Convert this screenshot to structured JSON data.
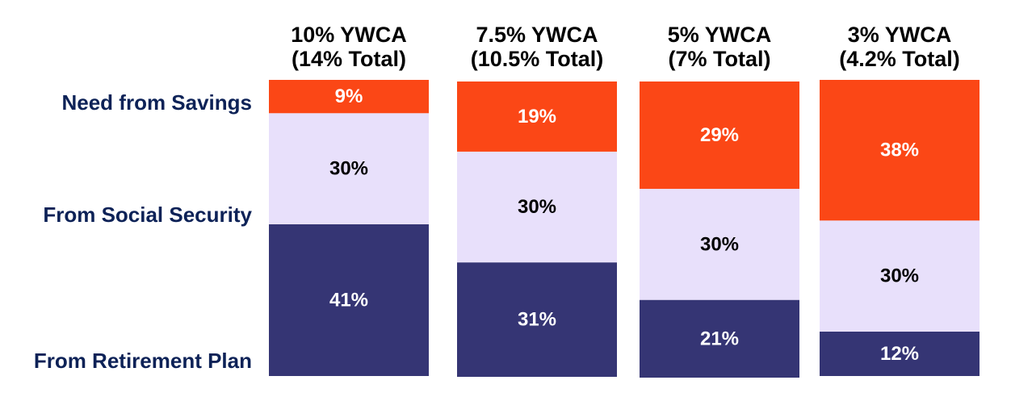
{
  "chart_data": {
    "type": "bar",
    "stacked": true,
    "normalized_to_total": false,
    "categories": [
      [
        "10% YWCA",
        "(14% Total)"
      ],
      [
        "7.5% YWCA",
        "(10.5% Total)"
      ],
      [
        "5% YWCA",
        "(7% Total)"
      ],
      [
        "3% YWCA",
        "(4.2% Total)"
      ]
    ],
    "series": [
      {
        "name": "From Retirement Plan",
        "values": [
          41,
          31,
          21,
          12
        ],
        "color": "#353574",
        "label_color": "#ffffff"
      },
      {
        "name": "From Social Security",
        "values": [
          30,
          30,
          30,
          30
        ],
        "color": "#e8e0fb",
        "label_color": "#000000"
      },
      {
        "name": "Need from Savings",
        "values": [
          9,
          19,
          29,
          38
        ],
        "color": "#fb4716",
        "label_color": "#ffffff"
      }
    ],
    "value_suffix": "%",
    "legend_placement": "left",
    "grid": false
  }
}
